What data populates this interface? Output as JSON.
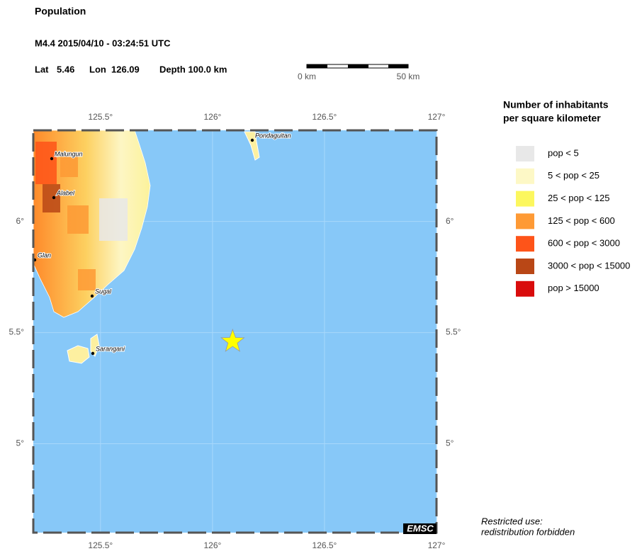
{
  "header": {
    "title": "Population",
    "event": "M4.4  2015/04/10 - 03:24:51 UTC",
    "lat_label": "Lat",
    "lat": 5.46,
    "lon_label": "Lon",
    "lon": 126.09,
    "depth": "Depth 100.0 km"
  },
  "scale_bar": {
    "start": "0 km",
    "end": "50 km"
  },
  "map": {
    "xlim": [
      125.2,
      127
    ],
    "ylim": [
      4.6,
      6.41
    ],
    "xticks": [
      {
        "value": 125.5,
        "label": "125.5°"
      },
      {
        "value": 126,
        "label": "126°"
      },
      {
        "value": 126.5,
        "label": "126.5°"
      },
      {
        "value": 127,
        "label": "127°"
      }
    ],
    "yticks": [
      {
        "value": 6,
        "label": "6°"
      },
      {
        "value": 5.5,
        "label": "5.5°"
      },
      {
        "value": 5,
        "label": "5°"
      }
    ],
    "places": [
      "Malungun",
      "Alabel",
      "Glan",
      "Sugal",
      "Sarangani",
      "Pondaguitan"
    ],
    "credit": "EMSC"
  },
  "legend": {
    "title": [
      "Number of inhabitants",
      "per square kilometer"
    ],
    "items": [
      {
        "label": "pop < 5",
        "color": "#e8e8e8"
      },
      {
        "label": "5 < pop < 25",
        "color": "#fdf8c6"
      },
      {
        "label": "25 < pop < 125",
        "color": "#fcf75e"
      },
      {
        "label": "125 < pop < 600",
        "color": "#fe9a35"
      },
      {
        "label": "600 < pop < 3000",
        "color": "#fe5419"
      },
      {
        "label": "3000 < pop < 15000",
        "color": "#b94716"
      },
      {
        "label": "pop > 15000",
        "color": "#d90c0c"
      }
    ]
  },
  "notice": [
    "Restricted use:",
    "redistribution forbidden"
  ]
}
